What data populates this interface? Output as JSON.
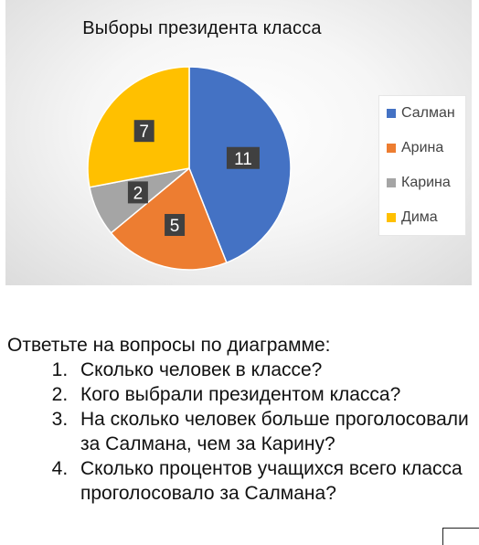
{
  "chart_data": {
    "type": "pie",
    "title": "Выборы президента класса",
    "categories": [
      "Салман",
      "Арина",
      "Карина",
      "Дима"
    ],
    "values": [
      11,
      5,
      2,
      7
    ],
    "colors": [
      "#4472C4",
      "#ED7D31",
      "#A5A5A5",
      "#FFC000"
    ],
    "data_labels": [
      "11",
      "5",
      "2",
      "7"
    ],
    "legend_position": "right"
  },
  "questions": {
    "intro": "Ответьте на вопросы по диаграмме:",
    "items": [
      "Сколько человек в классе?",
      "Кого выбрали президентом класса?",
      "На сколько человек больше проголосовали за Салмана, чем за Карину?",
      "Сколько процентов учащихся всего класса проголосовало за Салмана?"
    ]
  }
}
